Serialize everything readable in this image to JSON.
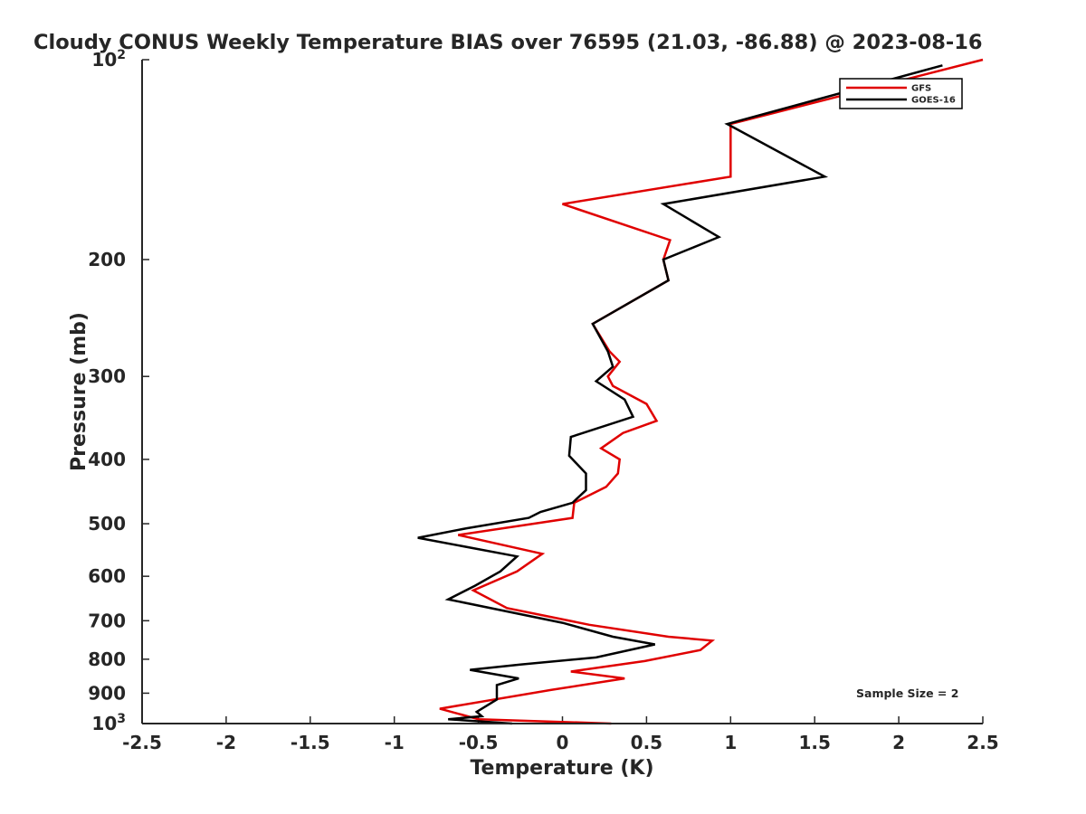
{
  "chart_data": {
    "type": "line",
    "title": "Cloudy CONUS Weekly Temperature BIAS over 76595 (21.03, -86.88) @ 2023-08-16",
    "xlabel": "Temperature (K)",
    "ylabel": "Pressure (mb)",
    "xlim": [
      -2.5,
      2.5
    ],
    "ylim": [
      100,
      1000
    ],
    "y_scale": "log",
    "y_reversed": true,
    "grid": false,
    "legend_position": "top-right",
    "x_ticks": [
      "-2.5",
      "-2",
      "-1.5",
      "-1",
      "-0.5",
      "0",
      "0.5",
      "1",
      "1.5",
      "2",
      "2.5"
    ],
    "y_ticks": [
      {
        "value": 100,
        "base": "10",
        "exp": "2"
      },
      {
        "value": 200,
        "label": "200"
      },
      {
        "value": 300,
        "label": "300"
      },
      {
        "value": 400,
        "label": "400"
      },
      {
        "value": 500,
        "label": "500"
      },
      {
        "value": 600,
        "label": "600"
      },
      {
        "value": 700,
        "label": "700"
      },
      {
        "value": 800,
        "label": "800"
      },
      {
        "value": 900,
        "label": "900"
      },
      {
        "value": 1000,
        "base": "10",
        "exp": "3"
      }
    ],
    "annotation": "Sample Size = 2",
    "series": [
      {
        "name": "GFS",
        "color": "#e00000",
        "points": [
          {
            "p": 100,
            "t": 2.5
          },
          {
            "p": 125,
            "t": 1.0
          },
          {
            "p": 150,
            "t": 1.0
          },
          {
            "p": 165,
            "t": 0.0
          },
          {
            "p": 187,
            "t": 0.64
          },
          {
            "p": 200,
            "t": 0.6
          },
          {
            "p": 215,
            "t": 0.63
          },
          {
            "p": 250,
            "t": 0.18
          },
          {
            "p": 275,
            "t": 0.28
          },
          {
            "p": 285,
            "t": 0.34
          },
          {
            "p": 300,
            "t": 0.27
          },
          {
            "p": 310,
            "t": 0.3
          },
          {
            "p": 330,
            "t": 0.5
          },
          {
            "p": 350,
            "t": 0.56
          },
          {
            "p": 365,
            "t": 0.36
          },
          {
            "p": 385,
            "t": 0.23
          },
          {
            "p": 400,
            "t": 0.34
          },
          {
            "p": 420,
            "t": 0.33
          },
          {
            "p": 440,
            "t": 0.26
          },
          {
            "p": 465,
            "t": 0.07
          },
          {
            "p": 490,
            "t": 0.06
          },
          {
            "p": 520,
            "t": -0.62
          },
          {
            "p": 555,
            "t": -0.12
          },
          {
            "p": 590,
            "t": -0.27
          },
          {
            "p": 630,
            "t": -0.53
          },
          {
            "p": 670,
            "t": -0.33
          },
          {
            "p": 710,
            "t": 0.16
          },
          {
            "p": 740,
            "t": 0.63
          },
          {
            "p": 750,
            "t": 0.89
          },
          {
            "p": 775,
            "t": 0.82
          },
          {
            "p": 805,
            "t": 0.49
          },
          {
            "p": 835,
            "t": 0.05
          },
          {
            "p": 855,
            "t": 0.37
          },
          {
            "p": 890,
            "t": -0.07
          },
          {
            "p": 950,
            "t": -0.73
          },
          {
            "p": 985,
            "t": -0.5
          },
          {
            "p": 1000,
            "t": 0.29
          }
        ]
      },
      {
        "name": "GOES-16",
        "color": "#000000",
        "points": [
          {
            "p": 102,
            "t": 2.26
          },
          {
            "p": 125,
            "t": 0.98
          },
          {
            "p": 150,
            "t": 1.56
          },
          {
            "p": 165,
            "t": 0.6
          },
          {
            "p": 185,
            "t": 0.93
          },
          {
            "p": 200,
            "t": 0.6
          },
          {
            "p": 215,
            "t": 0.63
          },
          {
            "p": 250,
            "t": 0.18
          },
          {
            "p": 275,
            "t": 0.27
          },
          {
            "p": 290,
            "t": 0.3
          },
          {
            "p": 305,
            "t": 0.2
          },
          {
            "p": 325,
            "t": 0.37
          },
          {
            "p": 345,
            "t": 0.42
          },
          {
            "p": 370,
            "t": 0.05
          },
          {
            "p": 395,
            "t": 0.04
          },
          {
            "p": 420,
            "t": 0.14
          },
          {
            "p": 445,
            "t": 0.14
          },
          {
            "p": 465,
            "t": 0.06
          },
          {
            "p": 480,
            "t": -0.13
          },
          {
            "p": 490,
            "t": -0.2
          },
          {
            "p": 508,
            "t": -0.57
          },
          {
            "p": 525,
            "t": -0.86
          },
          {
            "p": 560,
            "t": -0.27
          },
          {
            "p": 590,
            "t": -0.37
          },
          {
            "p": 620,
            "t": -0.52
          },
          {
            "p": 650,
            "t": -0.68
          },
          {
            "p": 705,
            "t": 0.0
          },
          {
            "p": 740,
            "t": 0.3
          },
          {
            "p": 760,
            "t": 0.55
          },
          {
            "p": 795,
            "t": 0.2
          },
          {
            "p": 815,
            "t": -0.25
          },
          {
            "p": 830,
            "t": -0.55
          },
          {
            "p": 855,
            "t": -0.26
          },
          {
            "p": 875,
            "t": -0.39
          },
          {
            "p": 920,
            "t": -0.39
          },
          {
            "p": 960,
            "t": -0.51
          },
          {
            "p": 975,
            "t": -0.48
          },
          {
            "p": 985,
            "t": -0.68
          },
          {
            "p": 1000,
            "t": -0.3
          }
        ]
      }
    ]
  }
}
